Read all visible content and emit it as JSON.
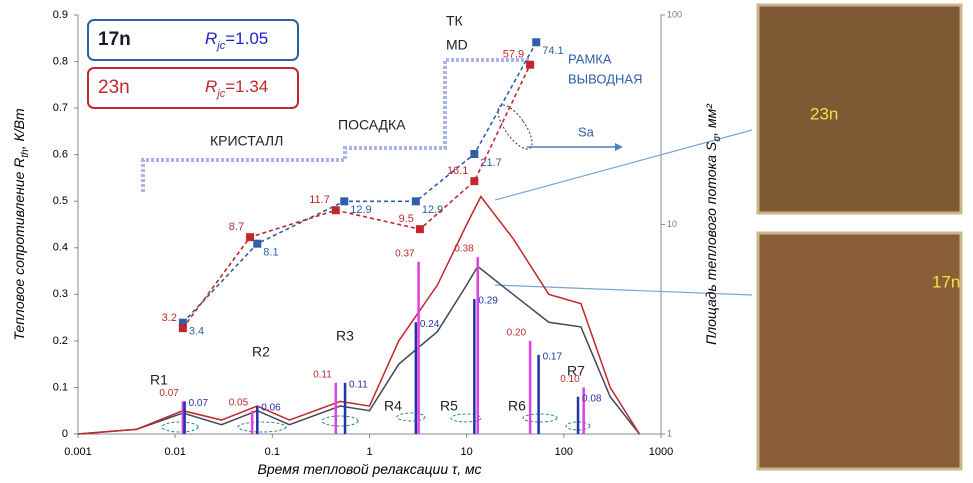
{
  "chart_data": {
    "type": "line",
    "xlabel": {
      "pre": "Время тепловой релаксации ",
      "sym": "τ",
      "post": ",  мс"
    },
    "ylabel": {
      "pre": "Тепловое сопротивление ",
      "sym": "R",
      "sub": "th",
      "post": ",  К/Вт"
    },
    "y2label": {
      "pre": "Площадь теплового потока ",
      "sym": "S",
      "sub": "σ",
      "post": ", мм²"
    },
    "xscale": "log",
    "xlim": [
      0.001,
      1000
    ],
    "xticks": [
      0.001,
      0.01,
      0.1,
      1,
      10,
      100,
      1000
    ],
    "ylim": [
      0,
      0.9
    ],
    "yticks": [
      0,
      0.1,
      0.2,
      0.3,
      0.4,
      0.5,
      0.6,
      0.7,
      0.8,
      0.9
    ],
    "y2scale": "log",
    "y2lim": [
      1,
      100
    ],
    "y2ticks": [
      1,
      10,
      100
    ],
    "series": [
      {
        "name": "17n",
        "color": "#2e5fa8",
        "axis": "y2",
        "rjc": {
          "sym": "R",
          "sub": "jc",
          "text": "=1.05"
        },
        "x": [
          0.012,
          0.07,
          0.55,
          3.0,
          12,
          52
        ],
        "values": [
          3.4,
          8.1,
          12.9,
          12.9,
          21.7,
          74.1
        ]
      },
      {
        "name": "23n",
        "color": "#c0282d",
        "axis": "y2",
        "rjc": {
          "sym": "R",
          "sub": "jc",
          "text": "=1.34"
        },
        "x": [
          0.012,
          0.059,
          0.45,
          3.3,
          12,
          45
        ],
        "values": [
          3.2,
          8.7,
          11.7,
          9.5,
          16.1,
          57.9
        ]
      }
    ],
    "spectra": [
      {
        "color": "#404a58",
        "x": [
          0.001,
          0.004,
          0.012,
          0.03,
          0.07,
          0.15,
          0.5,
          1,
          2,
          5,
          10,
          13,
          30,
          70,
          150,
          300,
          600
        ],
        "values": [
          0,
          0.01,
          0.045,
          0.02,
          0.05,
          0.02,
          0.06,
          0.05,
          0.15,
          0.22,
          0.32,
          0.36,
          0.3,
          0.24,
          0.23,
          0.08,
          0
        ]
      },
      {
        "color": "#c0282d",
        "x": [
          0.001,
          0.004,
          0.012,
          0.03,
          0.07,
          0.15,
          0.5,
          1,
          2,
          5,
          10,
          14,
          30,
          70,
          150,
          300,
          600
        ],
        "values": [
          0,
          0.01,
          0.05,
          0.03,
          0.06,
          0.03,
          0.07,
          0.06,
          0.2,
          0.32,
          0.45,
          0.51,
          0.42,
          0.3,
          0.28,
          0.1,
          0
        ]
      }
    ],
    "components": [
      {
        "color": "#e040e0",
        "x": [
          0.012,
          0.062,
          0.45,
          3.2,
          13,
          45,
          160
        ],
        "values": [
          0.07,
          0.05,
          0.11,
          0.37,
          0.38,
          0.2,
          0.1
        ],
        "value_labels": [
          "0.07",
          "0.05",
          "0.11",
          "0.37",
          "0.38",
          "0.20",
          "0.10"
        ]
      },
      {
        "color": "#2233aa",
        "x": [
          0.0125,
          0.07,
          0.56,
          3.0,
          12,
          55,
          140
        ],
        "values": [
          0.07,
          0.06,
          0.11,
          0.24,
          0.29,
          0.17,
          0.08
        ],
        "value_labels": [
          "0.07",
          "0.06",
          "0.11",
          "0.24",
          "0.29",
          "0.17",
          "0.08"
        ]
      }
    ],
    "annotations": [
      "КРИСТАЛЛ",
      "ПОСАДКА",
      "ТК",
      "MD",
      "РАМКА",
      "ВЫВОДНАЯ",
      "Sa",
      "R1",
      "R2",
      "R3",
      "R4",
      "R5",
      "R6",
      "R7"
    ]
  },
  "images": [
    {
      "label": "23n"
    },
    {
      "label": "17n"
    }
  ]
}
